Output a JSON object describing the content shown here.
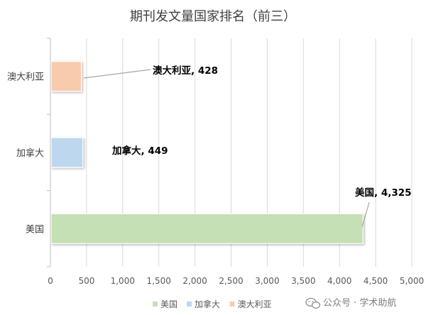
{
  "chart_data": {
    "type": "bar",
    "orientation": "horizontal",
    "title": "期刊发文量国家排名（前三）",
    "categories": [
      "美国",
      "加拿大",
      "澳大利亚"
    ],
    "series": [
      {
        "name": "美国",
        "color": "#c5e0b4",
        "values": [
          4325,
          null,
          null
        ]
      },
      {
        "name": "加拿大",
        "color": "#bdd7ee",
        "values": [
          null,
          449,
          null
        ]
      },
      {
        "name": "澳大利亚",
        "color": "#f8cbad",
        "values": [
          null,
          null,
          428
        ]
      }
    ],
    "data_labels": [
      "美国, 4,325",
      "加拿大, 449",
      "澳大利亚, 428"
    ],
    "xlim": [
      0,
      5000
    ],
    "x_ticks": [
      0,
      500,
      1000,
      1500,
      2000,
      2500,
      3000,
      3500,
      4000,
      4500,
      5000
    ],
    "x_tick_labels": [
      "0",
      "500",
      "1,000",
      "1,500",
      "2,000",
      "2,500",
      "3,000",
      "3,500",
      "4,000",
      "4,500",
      "5,000"
    ],
    "grid": "vertical",
    "legend_position": "bottom-right"
  },
  "watermark": {
    "text": "公众号 · 学术助航",
    "icon": "wechat-icon"
  }
}
